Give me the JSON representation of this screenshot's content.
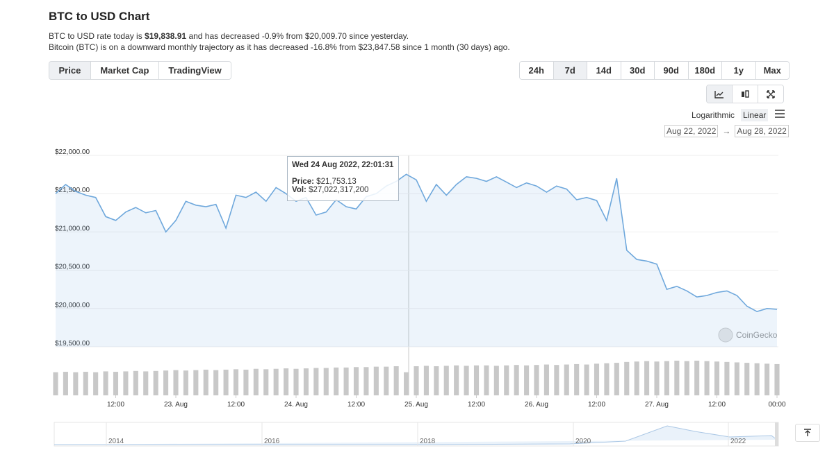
{
  "header": {
    "title": "BTC to USD Chart",
    "description": [
      [
        "BTC to USD rate today is ",
        "$19,838.91",
        " and has decreased -0.9% from $20,009.70 since yesterday."
      ],
      [
        "Bitcoin (BTC) is on a downward monthly trajectory as it has decreased -16.8% from $23,847.58 since 1 month (30 days) ago."
      ]
    ]
  },
  "tabs": [
    "Price",
    "Market Cap",
    "TradingView"
  ],
  "active_tab": "Price",
  "ranges": [
    "24h",
    "7d",
    "14d",
    "30d",
    "90d",
    "180d",
    "1y",
    "Max"
  ],
  "active_range": "7d",
  "scale_options": [
    "Logarithmic",
    "Linear"
  ],
  "active_scale": "Linear",
  "date_range": {
    "from": "Aug 22, 2022",
    "arrow": "→",
    "to": "Aug 28, 2022"
  },
  "watermark": "CoinGecko",
  "navigator": {
    "labels": [
      "2014",
      "2016",
      "2018",
      "2020",
      "2022"
    ]
  },
  "chart_data": {
    "type": "line",
    "log_scale": false,
    "grid": true,
    "ylim": [
      19500,
      22000
    ],
    "yticks": [
      {
        "value": 19500,
        "label": "$19,500.00"
      },
      {
        "value": 20000,
        "label": "$20,000.00"
      },
      {
        "value": 20500,
        "label": "$20,500.00"
      },
      {
        "value": 21000,
        "label": "$21,000.00"
      },
      {
        "value": 21500,
        "label": "$21,500.00"
      },
      {
        "value": 22000,
        "label": "$22,000.00"
      }
    ],
    "xlim": [
      0,
      144
    ],
    "xticks": [
      {
        "value": 12,
        "label": "12:00"
      },
      {
        "value": 24,
        "label": "23. Aug"
      },
      {
        "value": 36,
        "label": "12:00"
      },
      {
        "value": 48,
        "label": "24. Aug"
      },
      {
        "value": 60,
        "label": "12:00"
      },
      {
        "value": 72,
        "label": "25. Aug"
      },
      {
        "value": 84,
        "label": "12:00"
      },
      {
        "value": 96,
        "label": "26. Aug"
      },
      {
        "value": 108,
        "label": "12:00"
      },
      {
        "value": 120,
        "label": "27. Aug"
      },
      {
        "value": 132,
        "label": "12:00"
      },
      {
        "value": 144,
        "label": "00:00"
      }
    ],
    "x": [
      0,
      2,
      4,
      6,
      8,
      10,
      12,
      14,
      16,
      18,
      20,
      22,
      24,
      26,
      28,
      30,
      32,
      34,
      36,
      38,
      40,
      42,
      44,
      46,
      48,
      50,
      52,
      54,
      56,
      58,
      60,
      62,
      64,
      66,
      68,
      70,
      72,
      74,
      76,
      78,
      80,
      82,
      84,
      86,
      88,
      90,
      92,
      94,
      96,
      98,
      100,
      102,
      104,
      106,
      108,
      110,
      112,
      114,
      116,
      118,
      120,
      122,
      124,
      126,
      128,
      130,
      132,
      134,
      136,
      138,
      140,
      142,
      144
    ],
    "series": [
      {
        "name": "Price",
        "color": "#6fa8dc",
        "values": [
          21500,
          21620,
          21530,
          21480,
          21450,
          21200,
          21150,
          21260,
          21320,
          21250,
          21280,
          21000,
          21150,
          21400,
          21350,
          21330,
          21360,
          21050,
          21480,
          21450,
          21520,
          21400,
          21580,
          21500,
          21400,
          21450,
          21220,
          21260,
          21420,
          21330,
          21300,
          21460,
          21500,
          21600,
          21660,
          21753.13,
          21680,
          21400,
          21620,
          21480,
          21620,
          21720,
          21700,
          21660,
          21720,
          21650,
          21580,
          21640,
          21600,
          21520,
          21600,
          21560,
          21420,
          21450,
          21410,
          21150,
          21700,
          20760,
          20640,
          20620,
          20580,
          20250,
          20290,
          20230,
          20150,
          20170,
          20210,
          20230,
          20170,
          20030,
          19960,
          20000,
          19990
        ]
      }
    ],
    "volume": [
      27000000000,
      27500000000,
      27000000000,
      27500000000,
      27000000000,
      28000000000,
      27500000000,
      28000000000,
      28500000000,
      28000000000,
      28500000000,
      29000000000,
      29500000000,
      29000000000,
      29500000000,
      30000000000,
      29500000000,
      30000000000,
      30500000000,
      30000000000,
      31000000000,
      30500000000,
      31000000000,
      31500000000,
      31000000000,
      31500000000,
      32000000000,
      32000000000,
      32500000000,
      32500000000,
      33000000000,
      33000000000,
      33500000000,
      33500000000,
      34000000000,
      27022317200,
      34000000000,
      34500000000,
      34000000000,
      34500000000,
      35000000000,
      34500000000,
      35000000000,
      35000000000,
      34500000000,
      35000000000,
      35500000000,
      35000000000,
      35500000000,
      36000000000,
      35500000000,
      36000000000,
      36500000000,
      36000000000,
      37000000000,
      37500000000,
      38000000000,
      39000000000,
      39500000000,
      40000000000,
      39500000000,
      40000000000,
      40500000000,
      40000000000,
      40500000000,
      40000000000,
      39500000000,
      39000000000,
      38500000000,
      38000000000,
      37500000000,
      37000000000,
      36500000000
    ],
    "tooltip": {
      "title": "Wed 24 Aug 2022, 22:01:31",
      "price_label": "Price:",
      "price": "$21,753.13",
      "vol_label": "Vol:",
      "vol": "$27,022,317,200"
    }
  }
}
